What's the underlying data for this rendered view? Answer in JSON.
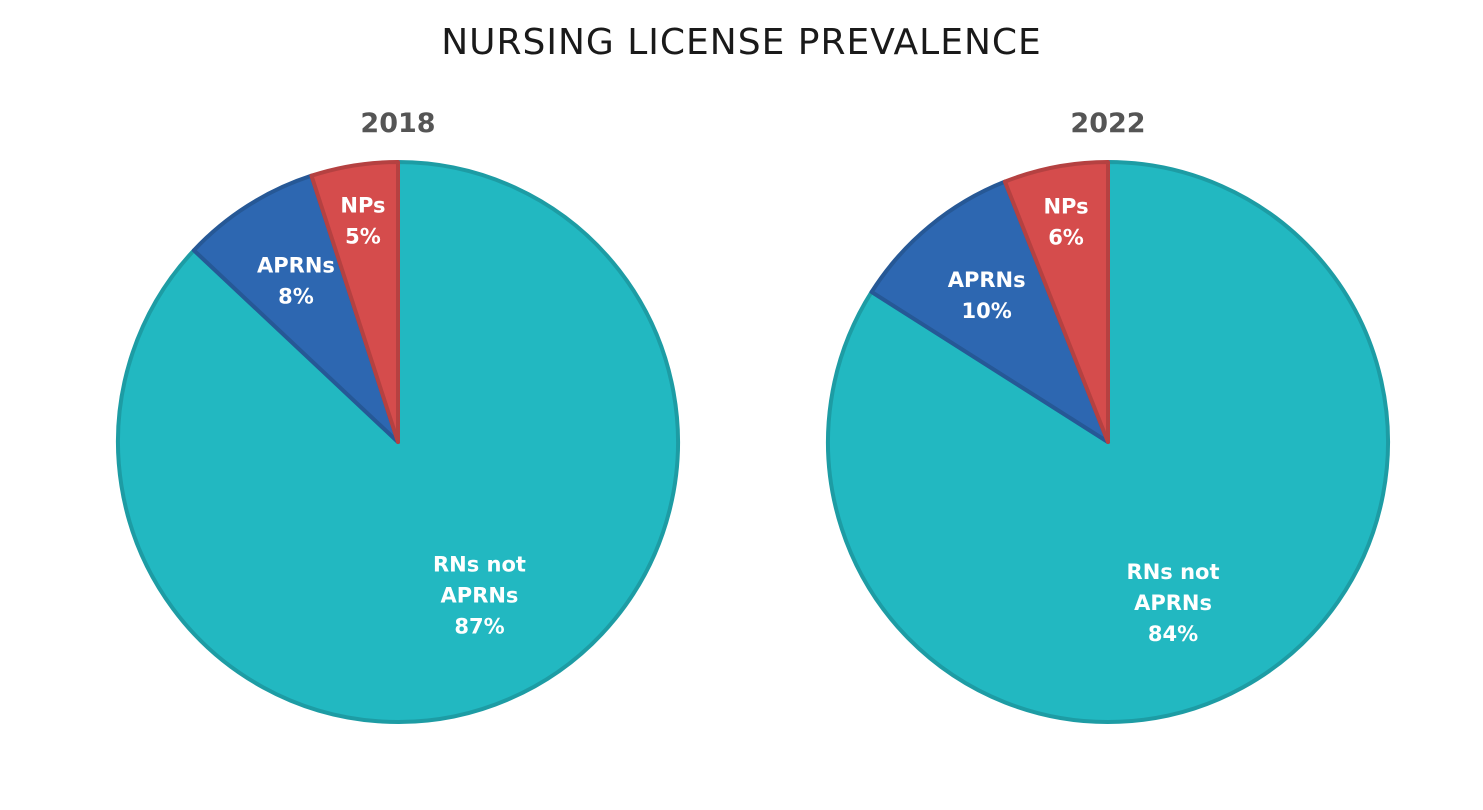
{
  "title": "NURSING LICENSE PREVALENCE",
  "colors": {
    "rns": "#22b8c1",
    "aprns": "#2d67b1",
    "nps": "#d54c4c"
  },
  "chart_data": [
    {
      "type": "pie",
      "title": "2018",
      "slices": [
        {
          "label_lines": [
            "RNs not",
            "APRNs"
          ],
          "value": 87,
          "value_label": "87%",
          "color": "#22b8c1"
        },
        {
          "label_lines": [
            "APRNs"
          ],
          "value": 8,
          "value_label": "8%",
          "color": "#2d67b1"
        },
        {
          "label_lines": [
            "NPs"
          ],
          "value": 5,
          "value_label": "5%",
          "color": "#d54c4c"
        }
      ]
    },
    {
      "type": "pie",
      "title": "2022",
      "slices": [
        {
          "label_lines": [
            "RNs not",
            "APRNs"
          ],
          "value": 84,
          "value_label": "84%",
          "color": "#22b8c1"
        },
        {
          "label_lines": [
            "APRNs"
          ],
          "value": 10,
          "value_label": "10%",
          "color": "#2d67b1"
        },
        {
          "label_lines": [
            "NPs"
          ],
          "value": 6,
          "value_label": "6%",
          "color": "#d54c4c"
        }
      ]
    }
  ]
}
